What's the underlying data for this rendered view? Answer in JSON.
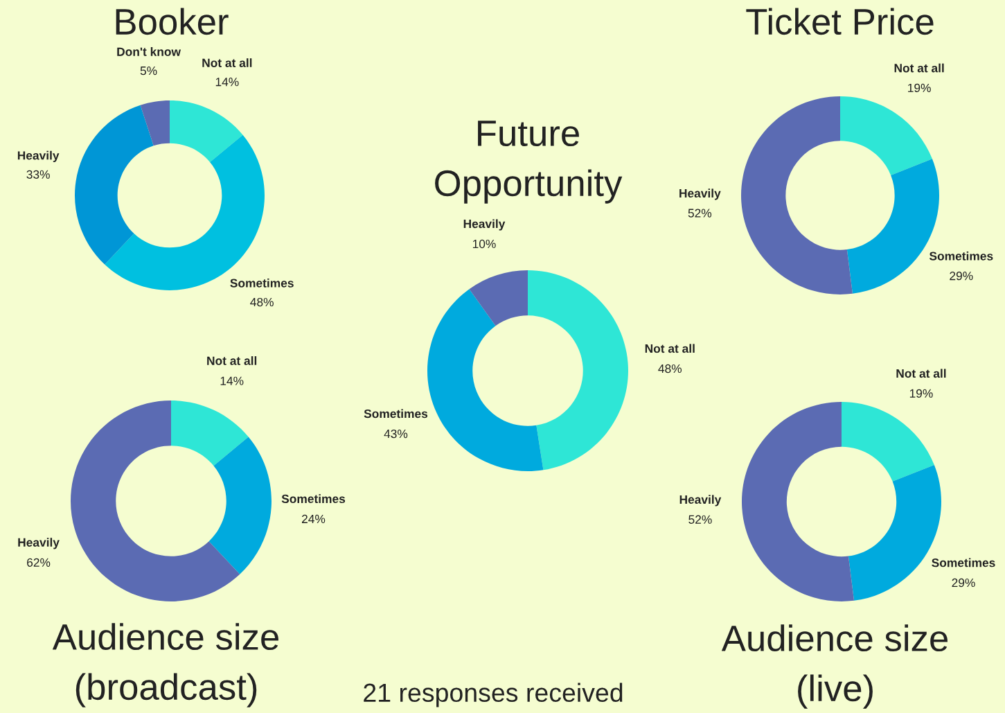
{
  "chart_data": [
    {
      "type": "donut",
      "title": "Booker",
      "categories": [
        "Not at all",
        "Sometimes",
        "Heavily",
        "Don't know"
      ],
      "values": [
        14,
        48,
        33,
        5
      ],
      "value_labels": [
        "14%",
        "48%",
        "33%",
        "5%"
      ],
      "colors": [
        "#2ee6d6",
        "#00c0e0",
        "#0096d6",
        "#5b6bb3"
      ]
    },
    {
      "type": "donut",
      "title": "Ticket Price",
      "categories": [
        "Not at all",
        "Sometimes",
        "Heavily"
      ],
      "values": [
        19,
        29,
        52
      ],
      "value_labels": [
        "19%",
        "29%",
        "52%"
      ],
      "colors": [
        "#2ee6d6",
        "#00aade",
        "#5b6bb3"
      ]
    },
    {
      "type": "donut",
      "title": "Future Opportunity",
      "categories": [
        "Not at all",
        "Sometimes",
        "Heavily"
      ],
      "values": [
        48,
        43,
        10
      ],
      "value_labels": [
        "48%",
        "43%",
        "10%"
      ],
      "colors": [
        "#2ee6d6",
        "#00aade",
        "#5b6bb3"
      ],
      "annotations": [
        "21 responses received"
      ]
    },
    {
      "type": "donut",
      "title": "Audience size (broadcast)",
      "categories": [
        "Not at all",
        "Sometimes",
        "Heavily"
      ],
      "values": [
        14,
        24,
        62
      ],
      "value_labels": [
        "14%",
        "24%",
        "62%"
      ],
      "colors": [
        "#2ee6d6",
        "#00aade",
        "#5b6bb3"
      ]
    },
    {
      "type": "donut",
      "title": "Audience size (live)",
      "categories": [
        "Not at all",
        "Sometimes",
        "Heavily"
      ],
      "values": [
        19,
        29,
        52
      ],
      "value_labels": [
        "19%",
        "29%",
        "52%"
      ],
      "colors": [
        "#2ee6d6",
        "#00aade",
        "#5b6bb3"
      ]
    }
  ]
}
